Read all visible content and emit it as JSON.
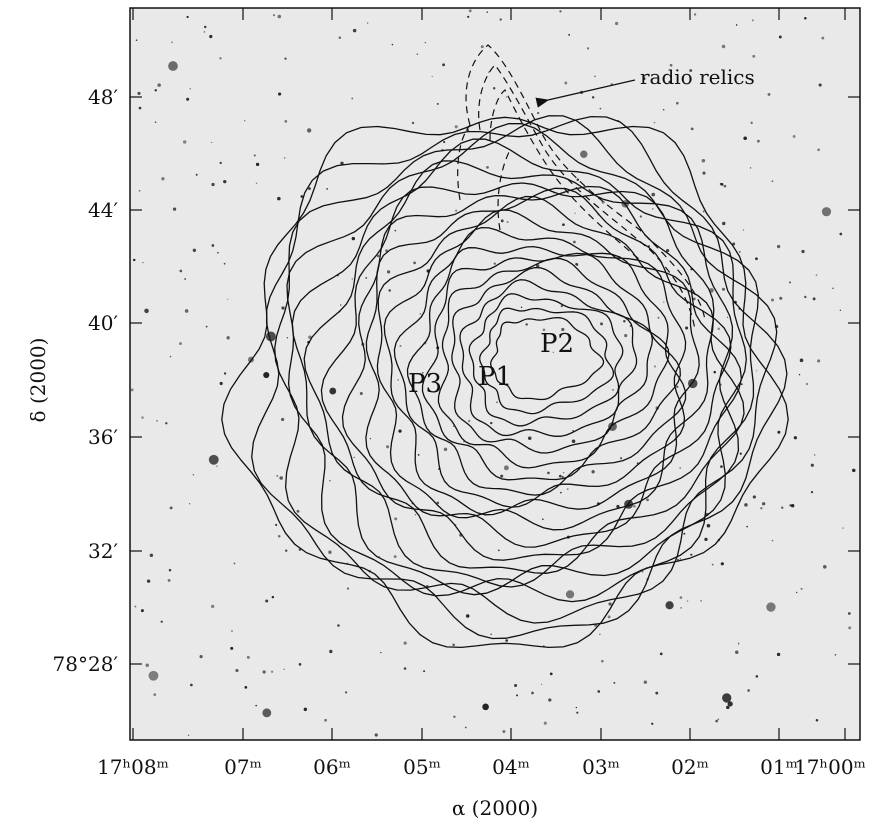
{
  "figure": {
    "y_axis_label": "δ (2000)",
    "x_axis_label": "α (2000)",
    "y_tick_labels": [
      "48′",
      "44′",
      "40′",
      "36′",
      "32′",
      "78°28′"
    ],
    "x_tick_labels": [
      "17ʰ08ᵐ",
      "07ᵐ",
      "06ᵐ",
      "05ᵐ",
      "04ᵐ",
      "03ᵐ",
      "02ᵐ",
      "01ᵐ",
      "17ʰ00ᵐ"
    ],
    "annotation": "radio relics",
    "peaks": [
      "P1",
      "P2",
      "P3"
    ]
  }
}
